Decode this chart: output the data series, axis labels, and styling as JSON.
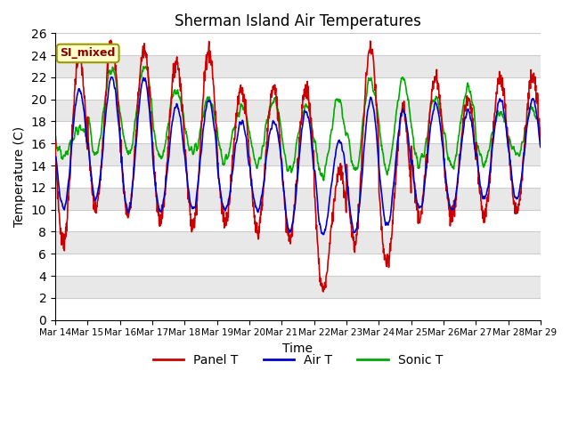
{
  "title": "Sherman Island Air Temperatures",
  "xlabel": "Time",
  "ylabel": "Temperature (C)",
  "ylim": [
    0,
    26
  ],
  "yticks": [
    0,
    2,
    4,
    6,
    8,
    10,
    12,
    14,
    16,
    18,
    20,
    22,
    24,
    26
  ],
  "annotation": "SI_mixed",
  "legend": [
    "Panel T",
    "Air T",
    "Sonic T"
  ],
  "colors": [
    "#cc0000",
    "#0000cc",
    "#00aa00"
  ],
  "linewidth": 1.2,
  "xtick_labels": [
    "Mar 14",
    "Mar 15",
    "Mar 16",
    "Mar 17",
    "Mar 18",
    "Mar 19",
    "Mar 20",
    "Mar 21",
    "Mar 22",
    "Mar 23",
    "Mar 24",
    "Mar 25",
    "Mar 26",
    "Mar 27",
    "Mar 28",
    "Mar 29"
  ],
  "num_days": 15,
  "pts_per_day": 96
}
